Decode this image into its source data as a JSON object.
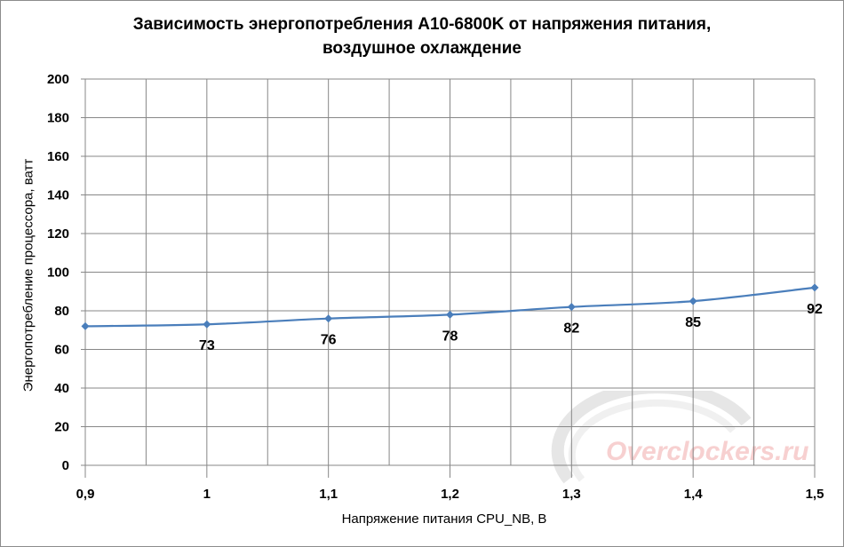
{
  "title_lines": [
    "Зависимость энергопотребления A10-6800K от напряжения питания,",
    "воздушное охлаждение"
  ],
  "watermark": "Overclockers.ru",
  "colors": {
    "series": "#4a7ebb",
    "grid": "#878787",
    "axis": "#878787"
  },
  "chart_data": {
    "type": "line",
    "title": "Зависимость энергопотребления A10-6800K от напряжения питания, воздушное охлаждение",
    "xlabel": "Напряжение питания CPU_NB, В",
    "ylabel": "Энергопотребление процессора, ватт",
    "x": [
      0.9,
      1.0,
      1.1,
      1.2,
      1.3,
      1.4,
      1.5
    ],
    "x_tick_labels": [
      "0,9",
      "1",
      "1,1",
      "1,2",
      "1,3",
      "1,4",
      "1,5"
    ],
    "y_tick_labels": [
      "0",
      "20",
      "40",
      "60",
      "80",
      "100",
      "120",
      "140",
      "160",
      "180",
      "200"
    ],
    "series": [
      {
        "values": [
          72,
          73,
          76,
          78,
          82,
          85,
          92
        ]
      }
    ],
    "data_labels": [
      null,
      "73",
      "76",
      "78",
      "82",
      "85",
      "92"
    ],
    "xlim": [
      0.9,
      1.5
    ],
    "ylim": [
      0,
      200
    ],
    "grid": true,
    "marker": "diamond",
    "smooth": true
  }
}
